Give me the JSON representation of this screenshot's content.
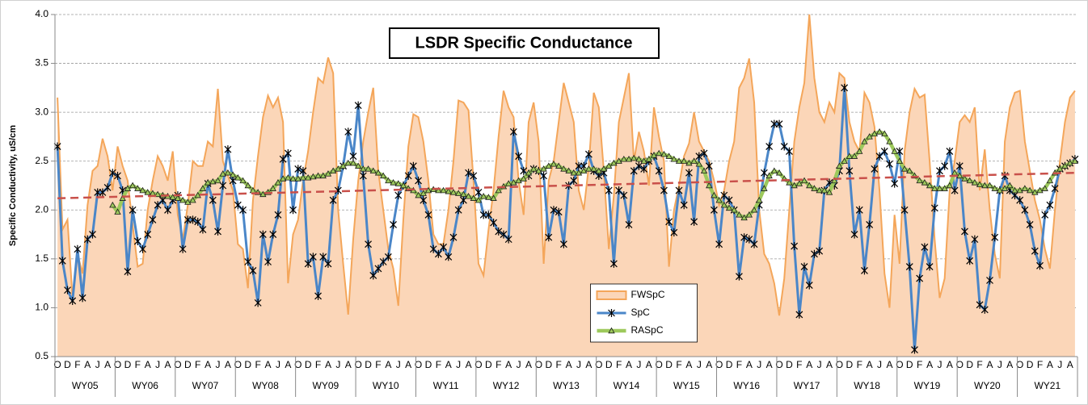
{
  "chart_data": {
    "type": "line",
    "title": "LSDR Specific Conductance",
    "y_label": "Specific Conductivity, uS/cm",
    "ylim": [
      0.5,
      4.0
    ],
    "yticks": [
      0.5,
      {
        "value": 1,
        "label": "1.0"
      },
      1.5,
      {
        "value": 2,
        "label": "2.0"
      },
      2.5,
      {
        "value": 3,
        "label": "3.0"
      },
      3.5,
      {
        "value": 4,
        "label": "4.0"
      }
    ],
    "grid": true,
    "legend": "lower-center",
    "categories": [
      "O",
      null,
      "D",
      null,
      "F",
      null,
      "A",
      null,
      "J",
      null,
      "A",
      null,
      "O",
      null,
      "D",
      null,
      "F",
      null,
      "A",
      null,
      "J",
      null,
      "A",
      null,
      "O",
      null,
      "D",
      null,
      "F",
      null,
      "A",
      null,
      "J",
      null,
      "A",
      null,
      "O",
      null,
      "D",
      null,
      "F",
      null,
      "A",
      null,
      "J",
      null,
      "A",
      null,
      "O",
      null,
      "D",
      null,
      "F",
      null,
      "A",
      null,
      "J",
      null,
      "A",
      null,
      "O",
      null,
      "D",
      null,
      "F",
      null,
      "A",
      null,
      "J",
      null,
      "A",
      null,
      "O",
      null,
      "D",
      null,
      "F",
      null,
      "A",
      null,
      "J",
      null,
      "A",
      null,
      "O",
      null,
      "D",
      null,
      "F",
      null,
      "A",
      null,
      "J",
      null,
      "A",
      null,
      "O",
      null,
      "D",
      null,
      "F",
      null,
      "A",
      null,
      "J",
      null,
      "A",
      null,
      "O",
      null,
      "D",
      null,
      "F",
      null,
      "A",
      null,
      "J",
      null,
      "A",
      null,
      "O",
      null,
      "D",
      null,
      "F",
      null,
      "A",
      null,
      "J",
      null,
      "A",
      null,
      "O",
      null,
      "D",
      null,
      "F",
      null,
      "A",
      null,
      "J",
      null,
      "A",
      null,
      "O",
      null,
      "D",
      null,
      "F",
      null,
      "A",
      null,
      "J",
      null,
      "A",
      null,
      "O",
      null,
      "D",
      null,
      "F",
      null,
      "A",
      null,
      "J",
      null,
      "A",
      null,
      "O",
      null,
      "D",
      null,
      "F",
      null,
      "A",
      null,
      "J",
      null,
      "A",
      null,
      "O",
      null,
      "D",
      null,
      "F",
      null,
      "A",
      null,
      "J",
      null,
      "A",
      null,
      "O",
      null,
      "D",
      null,
      "F",
      null,
      "A",
      null,
      "J",
      null,
      "A",
      null
    ],
    "groups": [
      "WY05",
      "WY06",
      "WY07",
      "WY08",
      "WY09",
      "WY10",
      "WY11",
      "WY12",
      "WY13",
      "WY14",
      "WY15",
      "WY16",
      "WY17",
      "WY18",
      "WY19",
      "WY20",
      "WY21"
    ],
    "series": [
      {
        "name": "FWSpC",
        "color": "#f4a65a",
        "fill": "#fbd6b8",
        "style": "area",
        "values": [
          3.15,
          1.8,
          1.9,
          1.1,
          1.55,
          1.35,
          2.05,
          2.4,
          2.45,
          2.73,
          2.55,
          2.2,
          2.65,
          2.45,
          2.3,
          1.85,
          1.42,
          1.45,
          2.0,
          2.3,
          2.55,
          2.45,
          2.3,
          2.6,
          1.95,
          1.7,
          2.05,
          2.5,
          2.45,
          2.45,
          2.7,
          2.65,
          3.24,
          2.5,
          2.35,
          2.2,
          1.65,
          1.6,
          1.2,
          2.1,
          2.55,
          2.95,
          3.17,
          3.05,
          3.15,
          2.9,
          1.25,
          1.75,
          1.9,
          2.3,
          2.6,
          3.0,
          3.35,
          3.3,
          3.56,
          3.4,
          2.0,
          1.45,
          0.93,
          1.7,
          2.3,
          2.7,
          3.0,
          3.25,
          2.4,
          2.0,
          1.6,
          1.4,
          1.02,
          1.9,
          2.65,
          2.98,
          2.95,
          2.7,
          2.3,
          1.75,
          1.65,
          1.65,
          2.0,
          2.5,
          3.12,
          3.1,
          3.02,
          2.3,
          1.45,
          1.33,
          1.8,
          2.2,
          2.75,
          3.22,
          3.05,
          2.95,
          2.3,
          1.95,
          2.9,
          3.1,
          2.7,
          1.45,
          2.3,
          2.5,
          2.9,
          3.3,
          3.1,
          2.9,
          2.2,
          2.0,
          2.45,
          3.2,
          3.05,
          2.4,
          1.6,
          2.15,
          2.9,
          3.15,
          3.4,
          2.5,
          2.8,
          2.6,
          2.25,
          3.05,
          2.75,
          2.5,
          1.42,
          2.0,
          2.25,
          2.55,
          2.68,
          3.0,
          2.7,
          2.6,
          2.5,
          2.3,
          2.05,
          2.2,
          2.5,
          2.7,
          3.25,
          3.35,
          3.55,
          3.1,
          2.0,
          1.55,
          1.45,
          1.25,
          0.92,
          1.3,
          2.0,
          2.7,
          3.05,
          3.3,
          4.0,
          3.35,
          3.0,
          2.9,
          3.1,
          3.0,
          3.4,
          3.35,
          2.9,
          2.7,
          2.6,
          3.2,
          3.1,
          2.85,
          2.2,
          1.35,
          1.0,
          1.95,
          1.45,
          2.6,
          3.0,
          3.24,
          3.15,
          3.18,
          2.5,
          1.7,
          1.1,
          1.3,
          2.2,
          2.5,
          2.9,
          2.97,
          2.9,
          3.05,
          2.2,
          2.62,
          2.0,
          1.55,
          1.3,
          2.7,
          3.05,
          3.2,
          3.22,
          2.7,
          2.4,
          2.1,
          1.9,
          1.6,
          1.4,
          2.0,
          2.5,
          2.9,
          3.15,
          3.22
        ]
      },
      {
        "name": "SpC",
        "color": "#4a86c8",
        "marker": "star",
        "style": "line",
        "values": [
          2.65,
          1.48,
          1.18,
          1.07,
          1.6,
          1.1,
          1.7,
          1.75,
          2.18,
          2.18,
          2.23,
          2.38,
          2.35,
          2.2,
          1.37,
          2.0,
          1.68,
          1.6,
          1.75,
          1.9,
          2.05,
          2.1,
          2.0,
          2.1,
          2.15,
          1.6,
          1.9,
          1.9,
          1.88,
          1.8,
          2.27,
          2.1,
          1.78,
          2.25,
          2.62,
          2.3,
          2.05,
          2.0,
          1.47,
          1.38,
          1.05,
          1.75,
          1.47,
          1.75,
          1.95,
          2.52,
          2.58,
          2.0,
          2.42,
          2.4,
          1.45,
          1.52,
          1.12,
          1.52,
          1.45,
          2.1,
          2.2,
          2.45,
          2.8,
          2.55,
          3.07,
          2.35,
          1.65,
          1.33,
          1.4,
          1.47,
          1.52,
          1.85,
          2.15,
          2.25,
          2.35,
          2.45,
          2.3,
          2.1,
          1.95,
          1.6,
          1.55,
          1.62,
          1.52,
          1.72,
          2.0,
          2.1,
          2.38,
          2.35,
          2.18,
          1.95,
          1.95,
          1.87,
          1.78,
          1.75,
          1.7,
          2.8,
          2.55,
          2.4,
          2.35,
          2.42,
          2.4,
          2.35,
          1.72,
          2.0,
          1.98,
          1.65,
          2.25,
          2.3,
          2.45,
          2.45,
          2.57,
          2.4,
          2.35,
          2.38,
          2.2,
          1.45,
          2.2,
          2.15,
          1.85,
          2.4,
          2.45,
          2.42,
          2.5,
          2.55,
          2.4,
          2.2,
          1.88,
          1.77,
          2.2,
          2.05,
          2.38,
          1.88,
          2.55,
          2.58,
          2.45,
          2.0,
          1.65,
          2.15,
          2.1,
          2.0,
          1.32,
          1.72,
          1.7,
          1.65,
          2.05,
          2.38,
          2.65,
          2.88,
          2.88,
          2.65,
          2.6,
          1.63,
          0.93,
          1.42,
          1.23,
          1.55,
          1.58,
          2.2,
          2.28,
          2.25,
          2.4,
          3.25,
          2.4,
          1.75,
          2.0,
          1.38,
          1.85,
          2.42,
          2.55,
          2.6,
          2.47,
          2.27,
          2.6,
          2.0,
          1.42,
          0.57,
          1.3,
          1.62,
          1.42,
          2.02,
          2.4,
          2.45,
          2.6,
          2.2,
          2.45,
          1.78,
          1.48,
          1.7,
          1.03,
          0.98,
          1.28,
          1.72,
          2.2,
          2.35,
          2.2,
          2.15,
          2.1,
          2.0,
          1.85,
          1.58,
          1.43,
          1.95,
          2.05,
          2.22,
          2.42,
          2.45,
          2.48,
          2.52
        ]
      },
      {
        "name": "RASpC",
        "color": "#9dc95c",
        "marker": "triangle",
        "style": "thick",
        "values": [
          null,
          null,
          null,
          null,
          null,
          null,
          null,
          null,
          null,
          null,
          null,
          2.05,
          1.98,
          2.12,
          2.22,
          2.25,
          2.22,
          2.2,
          2.18,
          2.17,
          2.16,
          2.15,
          2.14,
          2.13,
          2.12,
          2.1,
          2.08,
          2.1,
          2.15,
          2.22,
          2.28,
          2.29,
          2.3,
          2.37,
          2.38,
          2.36,
          2.33,
          2.3,
          2.25,
          2.2,
          2.18,
          2.16,
          2.18,
          2.22,
          2.28,
          2.32,
          2.33,
          2.32,
          2.32,
          2.33,
          2.33,
          2.34,
          2.35,
          2.35,
          2.37,
          2.4,
          2.42,
          2.45,
          2.48,
          2.48,
          2.45,
          2.42,
          2.42,
          2.4,
          2.38,
          2.35,
          2.3,
          2.28,
          2.27,
          2.25,
          2.22,
          2.2,
          2.15,
          2.17,
          2.2,
          2.21,
          2.2,
          2.2,
          2.19,
          2.18,
          2.17,
          2.16,
          2.14,
          2.12,
          2.1,
          2.14,
          2.13,
          2.12,
          2.2,
          2.24,
          2.27,
          2.28,
          2.3,
          2.32,
          2.38,
          2.42,
          2.4,
          2.42,
          2.45,
          2.47,
          2.45,
          2.42,
          2.4,
          2.38,
          2.38,
          2.4,
          2.42,
          2.42,
          2.4,
          2.42,
          2.45,
          2.48,
          2.5,
          2.52,
          2.52,
          2.53,
          2.52,
          2.5,
          2.52,
          2.56,
          2.58,
          2.57,
          2.55,
          2.52,
          2.5,
          2.5,
          2.48,
          2.5,
          2.47,
          2.4,
          2.25,
          2.15,
          2.1,
          2.05,
          2.02,
          2.0,
          1.95,
          1.92,
          1.95,
          2.0,
          2.1,
          2.22,
          2.35,
          2.4,
          2.38,
          2.32,
          2.28,
          2.25,
          2.27,
          2.3,
          2.25,
          2.22,
          2.2,
          2.2,
          2.18,
          2.3,
          2.45,
          2.5,
          2.55,
          2.55,
          2.6,
          2.7,
          2.75,
          2.78,
          2.8,
          2.78,
          2.7,
          2.6,
          2.5,
          2.42,
          2.4,
          2.35,
          2.3,
          2.28,
          2.25,
          2.22,
          2.22,
          2.22,
          2.25,
          2.38,
          2.35,
          2.32,
          2.3,
          2.28,
          2.26,
          2.25,
          2.25,
          2.22,
          2.2,
          2.22,
          2.25,
          2.2,
          2.2,
          2.22,
          2.2,
          2.18,
          2.2,
          2.22,
          2.3,
          2.38,
          2.42,
          2.45,
          2.48,
          2.5
        ]
      }
    ],
    "trend": {
      "color": "#c9504b",
      "values": [
        2.12,
        2.38
      ]
    }
  }
}
